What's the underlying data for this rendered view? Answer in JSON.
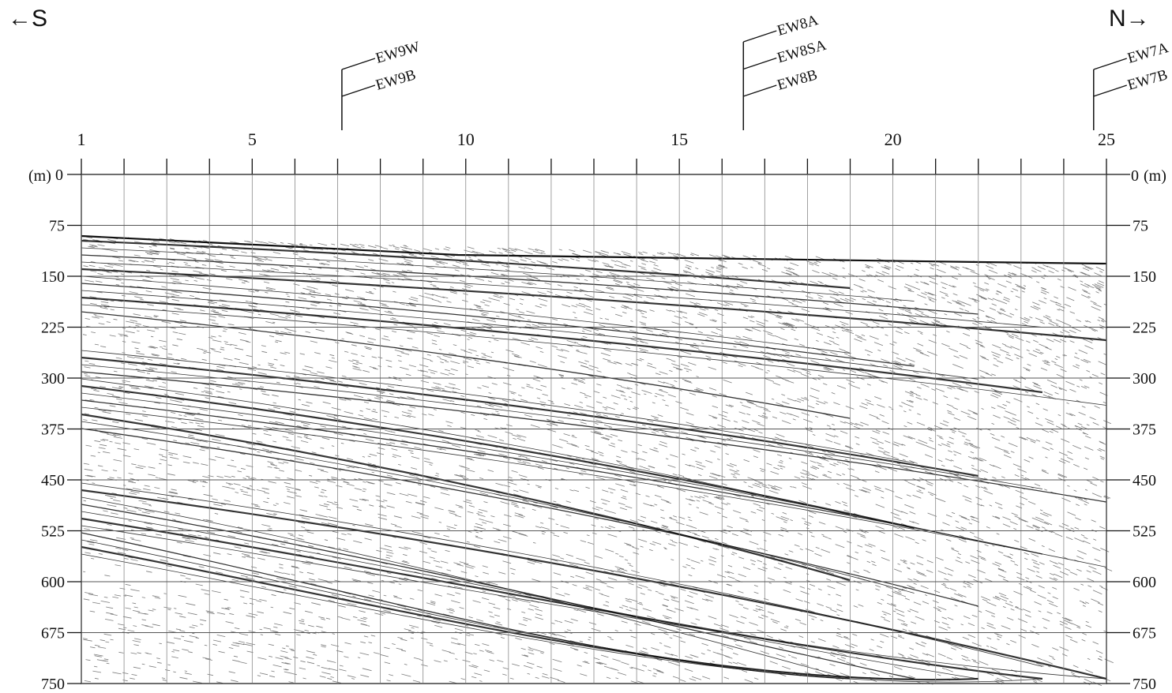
{
  "direction": {
    "left": "←S",
    "right": "N→"
  },
  "scale": {
    "top_unit_left": "(m)",
    "top_unit_right": "(m)"
  },
  "xaxis": {
    "ticks": [
      "1",
      "5",
      "10",
      "15",
      "20",
      "25"
    ],
    "min": 1,
    "max": 25
  },
  "yaxis": {
    "ticks": [
      "0",
      "75",
      "150",
      "225",
      "300",
      "375",
      "450",
      "525",
      "600",
      "675",
      "750"
    ],
    "right_top_label": "0",
    "min": 0,
    "max": 750
  },
  "boreholes": [
    {
      "position": 7.1,
      "labels": [
        "EW9W",
        "EW9B"
      ]
    },
    {
      "position": 16.5,
      "labels": [
        "EW8A",
        "EW8SA",
        "EW8B"
      ]
    },
    {
      "position": 24.7,
      "labels": [
        "EW7A",
        "EW7B"
      ]
    }
  ],
  "colors": {
    "ink": "#111111",
    "grid": "#555555",
    "background": "#ffffff"
  }
}
